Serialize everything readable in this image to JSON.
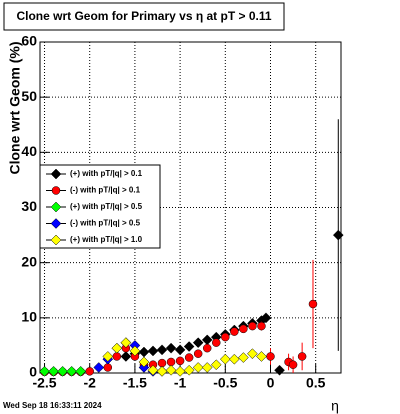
{
  "chart_data": {
    "type": "scatter",
    "title": "Clone wrt Geom for Primary vs   η at pT > 0.11",
    "y_label": "Clone wrt Geom (%)",
    "x_label": "η",
    "timestamp": "Wed Sep 18 16:33:11 2024",
    "xlim": [
      -2.55,
      0.78
    ],
    "ylim": [
      0,
      60
    ],
    "xticks": [
      -2.5,
      -2,
      -1.5,
      -1,
      -0.5,
      0,
      0.5
    ],
    "yticks": [
      0,
      10,
      20,
      30,
      40,
      50,
      60
    ],
    "grid": true,
    "series": [
      {
        "name": "(+) with pT/|q| > 0.1",
        "color": "#000000",
        "marker": "diamond",
        "x": [
          -1.6,
          -1.5,
          -1.4,
          -1.3,
          -1.2,
          -1.1,
          -1.0,
          -0.9,
          -0.8,
          -0.7,
          -0.6,
          -0.5,
          -0.4,
          -0.3,
          -0.2,
          -0.1,
          -0.05,
          0.1,
          0.75
        ],
        "values": [
          3,
          3.5,
          3.8,
          4,
          4.2,
          4.5,
          4.2,
          4.8,
          5.5,
          6,
          6.5,
          7,
          7.8,
          8.5,
          9,
          9.5,
          10,
          0.5,
          25
        ],
        "errors": [
          0.4,
          0.4,
          0.4,
          0.4,
          0.4,
          0.4,
          0.4,
          0.4,
          0.4,
          0.4,
          0.5,
          0.5,
          0.5,
          0.5,
          0.6,
          0.6,
          0.8,
          0.5,
          21
        ]
      },
      {
        "name": "(-) with pT/|q| > 0.1",
        "color": "#ff0000",
        "marker": "circle",
        "x": [
          -2.5,
          -2.4,
          -2.3,
          -2.2,
          -2.1,
          -2.0,
          -1.8,
          -1.7,
          -1.6,
          -1.5,
          -1.4,
          -1.3,
          -1.2,
          -1.1,
          -1.0,
          -0.9,
          -0.8,
          -0.7,
          -0.6,
          -0.5,
          -0.4,
          -0.3,
          -0.2,
          -0.1,
          0.0,
          0.2,
          0.25,
          0.35,
          0.47
        ],
        "values": [
          0.2,
          0.2,
          0.2,
          0.2,
          0.2,
          0.3,
          1,
          3,
          4.5,
          3,
          1.5,
          1.5,
          1.8,
          2,
          2.2,
          2.8,
          3.5,
          4.5,
          5.5,
          6.5,
          7.5,
          8,
          8.5,
          8.5,
          3,
          2,
          1.5,
          3,
          12.5
        ],
        "errors": [
          0.2,
          0.2,
          0.2,
          0.2,
          0.2,
          0.3,
          0.5,
          0.6,
          0.6,
          0.5,
          0.4,
          0.4,
          0.4,
          0.4,
          0.4,
          0.4,
          0.5,
          0.5,
          0.5,
          0.5,
          0.6,
          0.6,
          0.7,
          0.8,
          1.5,
          1.5,
          1.5,
          2.5,
          8
        ]
      },
      {
        "name": "(+) with pT/|q| > 0.5",
        "color": "#00ff00",
        "marker": "diamond",
        "x": [
          -2.5,
          -2.4,
          -2.3,
          -2.2,
          -2.1
        ],
        "values": [
          0.3,
          0.3,
          0.3,
          0.3,
          0.3
        ],
        "errors": [
          0.2,
          0.2,
          0.2,
          0.2,
          0.2
        ]
      },
      {
        "name": "(-) with pT/|q| > 0.5",
        "color": "#0000ff",
        "marker": "diamond",
        "x": [
          -1.9,
          -1.8,
          -1.7,
          -1.6,
          -1.5,
          -1.4,
          -1.3,
          -1.2
        ],
        "values": [
          1,
          2.5,
          4.5,
          5.5,
          5,
          1,
          0.3,
          0.3
        ],
        "errors": [
          0.4,
          0.5,
          0.6,
          0.7,
          0.6,
          0.4,
          0.2,
          0.2
        ]
      },
      {
        "name": "(+) with pT/|q| > 1.0",
        "color": "#ffff00",
        "marker": "diamond",
        "x": [
          -1.8,
          -1.7,
          -1.6,
          -1.5,
          -1.4,
          -1.3,
          -1.2,
          -1.1,
          -1.0,
          -0.9,
          -0.8,
          -0.7,
          -0.6,
          -0.5,
          -0.4,
          -0.3,
          -0.2,
          -0.1
        ],
        "values": [
          3,
          4.5,
          5.5,
          4,
          2,
          0.5,
          0.3,
          0.5,
          0.3,
          0.5,
          1,
          1,
          1.5,
          2.5,
          2.5,
          2.8,
          3.5,
          3
        ],
        "errors": [
          0.5,
          0.6,
          0.7,
          0.6,
          0.4,
          0.3,
          0.2,
          0.3,
          0.2,
          0.3,
          0.4,
          0.4,
          0.4,
          0.5,
          0.5,
          0.5,
          0.6,
          0.6
        ]
      }
    ]
  }
}
